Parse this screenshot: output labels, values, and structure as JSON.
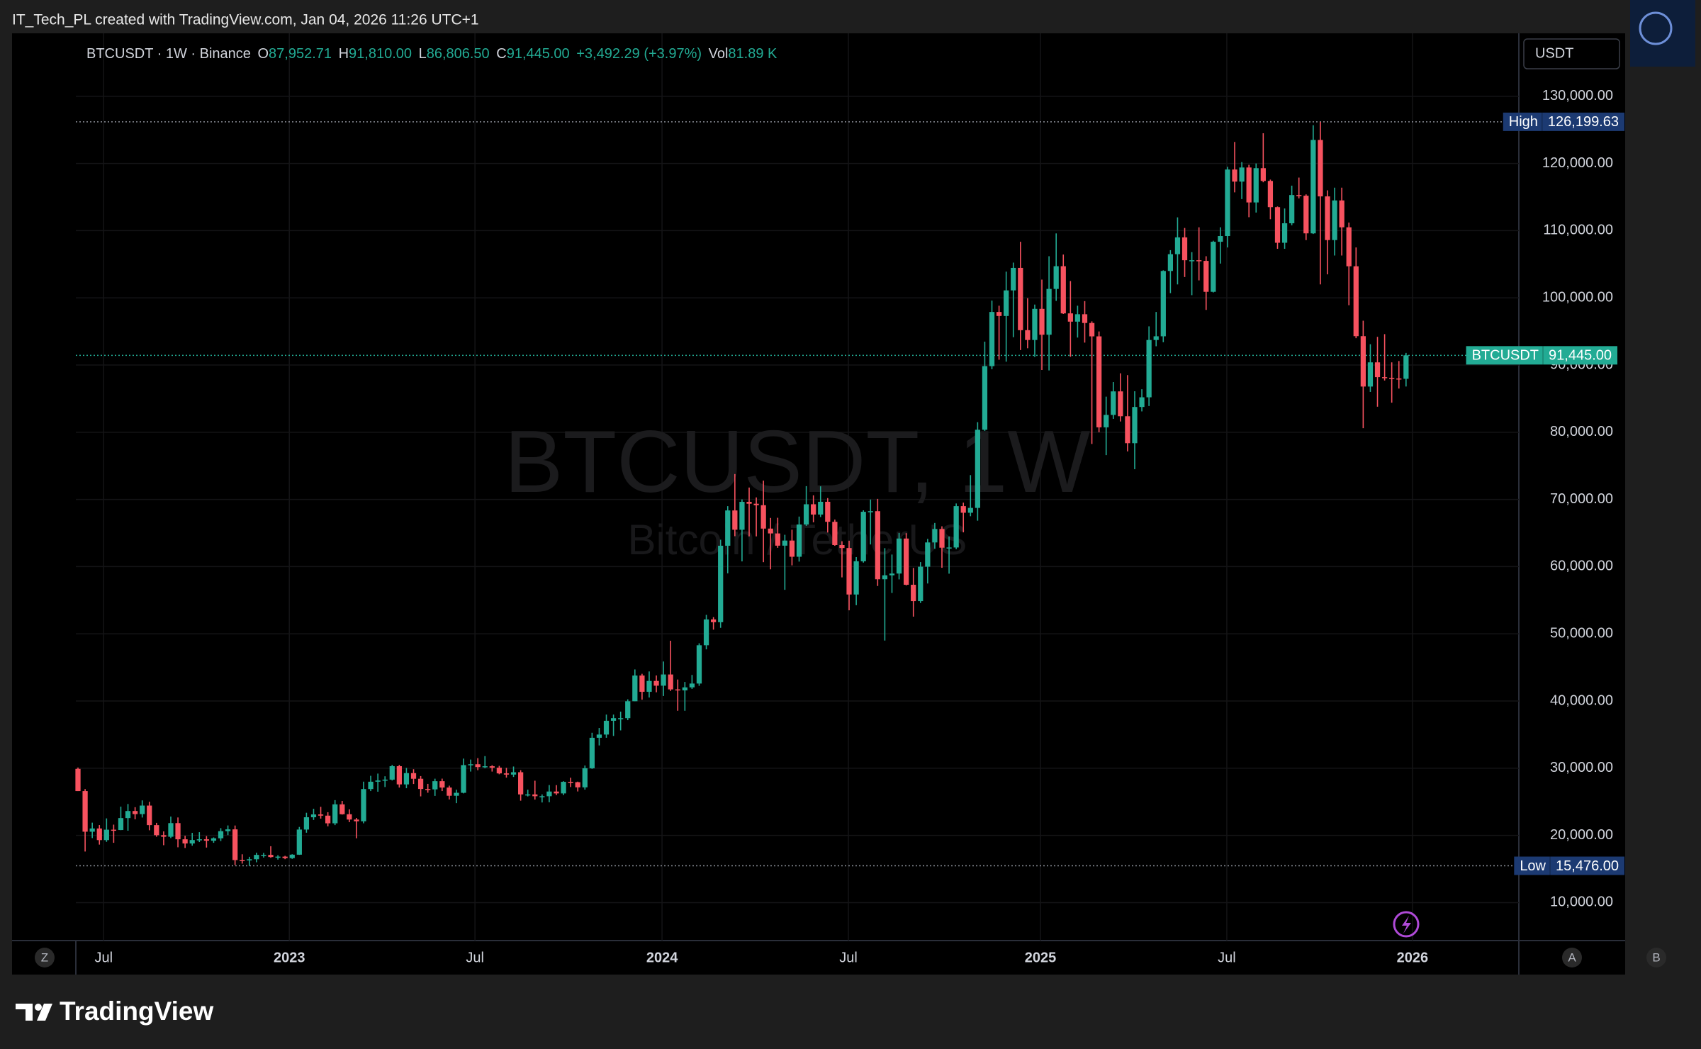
{
  "header": {
    "text": "IT_Tech_PL created with TradingView.com, Jan 04, 2026 11:26 UTC+1"
  },
  "chart_data": {
    "type": "candlestick",
    "legend": {
      "symbol": "BTCUSDT · 1W · Binance",
      "open_label": "O",
      "open": "87,952.71",
      "high_label": "H",
      "high": "91,810.00",
      "low_label": "L",
      "low": "86,806.50",
      "close_label": "C",
      "close": "91,445.00",
      "change": "+3,492.29 (+3.97%)",
      "volume_label": "Vol",
      "volume": "81.89 K"
    },
    "watermark": {
      "title": "BTCUSDT, 1W",
      "subtitle": "Bitcoin / TetherUS"
    },
    "currency": "USDT",
    "up_color": "#22ab94",
    "down_color": "#f7525f",
    "ohlc": [
      [
        29900,
        30100,
        26600,
        26600
      ],
      [
        26600,
        26900,
        17600,
        20550
      ],
      [
        20550,
        21900,
        19600,
        21030
      ],
      [
        21030,
        21540,
        18630,
        19300
      ],
      [
        19300,
        22530,
        19040,
        20850
      ],
      [
        20850,
        21600,
        18900,
        20800
      ],
      [
        20800,
        24280,
        20780,
        22580
      ],
      [
        22580,
        24670,
        20700,
        23630
      ],
      [
        23630,
        24200,
        22400,
        23170
      ],
      [
        23170,
        25210,
        22660,
        24440
      ],
      [
        24440,
        25000,
        20760,
        21530
      ],
      [
        21530,
        21870,
        19800,
        20030
      ],
      [
        20030,
        20600,
        18540,
        19800
      ],
      [
        19800,
        22800,
        19600,
        21830
      ],
      [
        21830,
        22670,
        18230,
        19420
      ],
      [
        19420,
        19950,
        18130,
        18800
      ],
      [
        18800,
        20380,
        18470,
        19310
      ],
      [
        19310,
        20480,
        19010,
        19420
      ],
      [
        19420,
        19900,
        18190,
        19210
      ],
      [
        19210,
        19700,
        18900,
        19570
      ],
      [
        19570,
        21080,
        19160,
        20630
      ],
      [
        20630,
        21480,
        20040,
        20900
      ],
      [
        20900,
        21470,
        15590,
        16330
      ],
      [
        16330,
        17190,
        15800,
        16280
      ],
      [
        16280,
        16810,
        15476,
        16450
      ],
      [
        16450,
        17430,
        16000,
        17100
      ],
      [
        17100,
        17400,
        16700,
        17100
      ],
      [
        17100,
        18390,
        16670,
        16780
      ],
      [
        16780,
        17060,
        16400,
        16840
      ],
      [
        16840,
        16960,
        16460,
        16620
      ],
      [
        16620,
        17200,
        16500,
        17130
      ],
      [
        17130,
        21260,
        17100,
        20870
      ],
      [
        20870,
        23370,
        20400,
        22700
      ],
      [
        22700,
        23960,
        22300,
        23120
      ],
      [
        23120,
        24250,
        22500,
        22940
      ],
      [
        22940,
        23450,
        21350,
        21800
      ],
      [
        21800,
        25250,
        21530,
        24620
      ],
      [
        24620,
        25130,
        23100,
        23150
      ],
      [
        23150,
        23880,
        21970,
        22360
      ],
      [
        22360,
        22600,
        19570,
        22100
      ],
      [
        22100,
        28000,
        21800,
        26900
      ],
      [
        26900,
        28870,
        26600,
        27990
      ],
      [
        27990,
        29200,
        26500,
        28170
      ],
      [
        28170,
        28800,
        27200,
        28300
      ],
      [
        28300,
        30500,
        28170,
        30300
      ],
      [
        30300,
        30500,
        27120,
        27590
      ],
      [
        27590,
        30040,
        27020,
        29270
      ],
      [
        29270,
        29850,
        27650,
        28430
      ],
      [
        28430,
        28830,
        25810,
        26910
      ],
      [
        26910,
        27670,
        26350,
        26850
      ],
      [
        26850,
        28440,
        25880,
        28070
      ],
      [
        28070,
        28450,
        26600,
        27120
      ],
      [
        27120,
        27400,
        25350,
        25900
      ],
      [
        25900,
        26800,
        24800,
        26340
      ],
      [
        26340,
        31430,
        26250,
        30460
      ],
      [
        30460,
        31290,
        29500,
        30590
      ],
      [
        30590,
        31500,
        29700,
        30170
      ],
      [
        30170,
        31800,
        30000,
        30290
      ],
      [
        30290,
        30450,
        29500,
        30080
      ],
      [
        30080,
        30350,
        29100,
        29230
      ],
      [
        29230,
        30050,
        28600,
        29050
      ],
      [
        29050,
        30250,
        28700,
        29400
      ],
      [
        29400,
        29700,
        25170,
        26100
      ],
      [
        26100,
        26800,
        25800,
        26100
      ],
      [
        26100,
        28140,
        25330,
        25830
      ],
      [
        25830,
        26100,
        24900,
        25830
      ],
      [
        25830,
        27490,
        24930,
        26530
      ],
      [
        26530,
        27480,
        26000,
        26250
      ],
      [
        26250,
        28070,
        26000,
        27970
      ],
      [
        27970,
        28580,
        27200,
        27920
      ],
      [
        27920,
        28000,
        26540,
        27150
      ],
      [
        27150,
        30400,
        26810,
        29990
      ],
      [
        29990,
        35280,
        29900,
        34530
      ],
      [
        34530,
        35990,
        33390,
        35010
      ],
      [
        35010,
        37980,
        34530,
        37060
      ],
      [
        37060,
        37980,
        34800,
        37450
      ],
      [
        37450,
        38420,
        35630,
        37450
      ],
      [
        37450,
        40250,
        37150,
        39970
      ],
      [
        39970,
        44700,
        39970,
        43790
      ],
      [
        43790,
        44050,
        40200,
        41370
      ],
      [
        41370,
        44400,
        40520,
        42990
      ],
      [
        42990,
        43800,
        41300,
        42280
      ],
      [
        42280,
        45880,
        40750,
        43950
      ],
      [
        43950,
        48970,
        41500,
        41730
      ],
      [
        41730,
        43200,
        38550,
        41580
      ],
      [
        41580,
        42840,
        38550,
        42030
      ],
      [
        42030,
        43880,
        41800,
        42600
      ],
      [
        42600,
        48590,
        42260,
        48300
      ],
      [
        48300,
        52820,
        47690,
        52140
      ],
      [
        52140,
        52480,
        50620,
        51730
      ],
      [
        51730,
        64000,
        50900,
        63110
      ],
      [
        63110,
        69000,
        59000,
        68360
      ],
      [
        68360,
        73780,
        64530,
        65490
      ],
      [
        65490,
        70000,
        60780,
        69640
      ],
      [
        69640,
        71770,
        64500,
        69360
      ],
      [
        69360,
        70300,
        64500,
        69140
      ],
      [
        69140,
        72800,
        60660,
        65660
      ],
      [
        65660,
        67240,
        59600,
        64940
      ],
      [
        64940,
        67270,
        62800,
        63120
      ],
      [
        63120,
        64740,
        56550,
        63880
      ],
      [
        63880,
        65500,
        60190,
        61470
      ],
      [
        61470,
        67450,
        60750,
        66270
      ],
      [
        66270,
        71980,
        66060,
        69280
      ],
      [
        69280,
        70610,
        66600,
        67750
      ],
      [
        67750,
        71950,
        67380,
        69650
      ],
      [
        69650,
        70200,
        65080,
        66670
      ],
      [
        66670,
        67000,
        63100,
        63210
      ],
      [
        63210,
        63780,
        58400,
        62770
      ],
      [
        62770,
        63860,
        53500,
        55850
      ],
      [
        55850,
        61420,
        54260,
        60800
      ],
      [
        60800,
        68380,
        60600,
        68160
      ],
      [
        68160,
        69990,
        63300,
        68250
      ],
      [
        68250,
        70080,
        57120,
        58120
      ],
      [
        58120,
        62750,
        49000,
        58710
      ],
      [
        58710,
        61800,
        56080,
        58970
      ],
      [
        58970,
        65000,
        58100,
        64180
      ],
      [
        64180,
        64980,
        57200,
        57300
      ],
      [
        57300,
        59810,
        52550,
        54870
      ],
      [
        54870,
        60670,
        54590,
        59990
      ],
      [
        59990,
        64130,
        57490,
        63600
      ],
      [
        63600,
        66500,
        62650,
        65600
      ],
      [
        65600,
        66000,
        59830,
        62820
      ],
      [
        62820,
        64480,
        58950,
        62850
      ],
      [
        62850,
        69400,
        62600,
        69000
      ],
      [
        69000,
        69520,
        65100,
        68020
      ],
      [
        68020,
        73620,
        67500,
        68740
      ],
      [
        68740,
        81500,
        66830,
        80370
      ],
      [
        80370,
        93480,
        80200,
        89840
      ],
      [
        89840,
        99590,
        89380,
        97900
      ],
      [
        97900,
        98830,
        90790,
        97300
      ],
      [
        97300,
        103900,
        90500,
        101110
      ],
      [
        101110,
        105250,
        94150,
        104460
      ],
      [
        104460,
        108350,
        92230,
        95190
      ],
      [
        95190,
        99950,
        92500,
        93730
      ],
      [
        93730,
        99000,
        91210,
        98360
      ],
      [
        98360,
        102720,
        89260,
        94510
      ],
      [
        94510,
        106200,
        89200,
        101330
      ],
      [
        101330,
        109590,
        99550,
        104710
      ],
      [
        104710,
        106450,
        97600,
        97690
      ],
      [
        97690,
        102500,
        91230,
        96460
      ],
      [
        96460,
        98830,
        94090,
        97560
      ],
      [
        97560,
        99510,
        93340,
        96260
      ],
      [
        96260,
        96500,
        78260,
        94270
      ],
      [
        94270,
        95000,
        80000,
        80730
      ],
      [
        80730,
        85300,
        76600,
        82580
      ],
      [
        82580,
        87470,
        81990,
        86080
      ],
      [
        86080,
        88770,
        81600,
        82380
      ],
      [
        82380,
        88500,
        77150,
        78370
      ],
      [
        78370,
        86100,
        74500,
        83760
      ],
      [
        83760,
        86400,
        83100,
        85200
      ],
      [
        85200,
        95760,
        83900,
        93730
      ],
      [
        93730,
        97900,
        92800,
        94280
      ],
      [
        94280,
        104100,
        93400,
        104000
      ],
      [
        104000,
        107100,
        100700,
        106500
      ],
      [
        106500,
        111980,
        102000,
        109000
      ],
      [
        109000,
        110400,
        103100,
        105600
      ],
      [
        105600,
        106800,
        100400,
        105600
      ],
      [
        105600,
        110500,
        102600,
        105500
      ],
      [
        105500,
        106200,
        98200,
        100900
      ],
      [
        100900,
        108500,
        100800,
        108350
      ],
      [
        108350,
        110500,
        105100,
        109200
      ],
      [
        109200,
        119500,
        107500,
        119100
      ],
      [
        119100,
        123200,
        115700,
        117300
      ],
      [
        117300,
        120200,
        114700,
        119400
      ],
      [
        119400,
        119800,
        112000,
        114200
      ],
      [
        114200,
        120000,
        112700,
        119300
      ],
      [
        119300,
        124500,
        117200,
        117400
      ],
      [
        117400,
        117600,
        111700,
        113500
      ],
      [
        113500,
        113600,
        107300,
        108200
      ],
      [
        108200,
        113300,
        107300,
        111100
      ],
      [
        111100,
        116700,
        110800,
        115300
      ],
      [
        115300,
        117900,
        114800,
        115200
      ],
      [
        115200,
        115400,
        108600,
        109600
      ],
      [
        109600,
        125700,
        109500,
        123500
      ],
      [
        123500,
        126199.63,
        102000,
        115100
      ],
      [
        115100,
        116000,
        103500,
        108600
      ],
      [
        108600,
        116400,
        106300,
        114500
      ],
      [
        114500,
        116400,
        106300,
        110500
      ],
      [
        110500,
        111200,
        98900,
        104700
      ],
      [
        104700,
        107500,
        94000,
        94300
      ],
      [
        94300,
        96600,
        80600,
        86800
      ],
      [
        86800,
        93100,
        86000,
        90400
      ],
      [
        90400,
        94200,
        83800,
        88200
      ],
      [
        88200,
        94600,
        87700,
        88100
      ],
      [
        88100,
        90400,
        84400,
        88000
      ],
      [
        88000,
        90600,
        86500,
        87952.71
      ],
      [
        87952.71,
        91810,
        86806.5,
        91445
      ]
    ],
    "xlim": [
      -0.3,
      201.8
    ],
    "xticks": [
      {
        "value": 3.6,
        "label": "Jul"
      },
      {
        "value": 29.6,
        "label": "2023"
      },
      {
        "value": 55.6,
        "label": "Jul"
      },
      {
        "value": 81.8,
        "label": "2024"
      },
      {
        "value": 107.9,
        "label": "Jul"
      },
      {
        "value": 134.8,
        "label": "2025"
      },
      {
        "value": 160.9,
        "label": "Jul"
      },
      {
        "value": 186.9,
        "label": "2026"
      }
    ],
    "ylim": [
      4350,
      139370
    ],
    "yticks": [
      {
        "value": 10000,
        "label": "10,000.00"
      },
      {
        "value": 20000,
        "label": "20,000.00"
      },
      {
        "value": 30000,
        "label": "30,000.00"
      },
      {
        "value": 40000,
        "label": "40,000.00"
      },
      {
        "value": 50000,
        "label": "50,000.00"
      },
      {
        "value": 60000,
        "label": "60,000.00"
      },
      {
        "value": 70000,
        "label": "70,000.00"
      },
      {
        "value": 80000,
        "label": "80,000.00"
      },
      {
        "value": 90000,
        "label": "90,000.00"
      },
      {
        "value": 100000,
        "label": "100,000.00"
      },
      {
        "value": 110000,
        "label": "110,000.00"
      },
      {
        "value": 120000,
        "label": "120,000.00"
      },
      {
        "value": 130000,
        "label": "130,000.00"
      }
    ],
    "grid": true,
    "high_marker": {
      "label": "High",
      "value": 126199.63,
      "value_label": "126,199.63"
    },
    "low_marker": {
      "label": "Low",
      "value": 15476,
      "value_label": "15,476.00"
    },
    "last_price": {
      "label": "BTCUSDT",
      "value": 91445,
      "value_label": "91,445.00"
    }
  },
  "scale_buttons": [
    "Z",
    "A",
    "B"
  ],
  "footer": {
    "logo": "TradingView"
  }
}
